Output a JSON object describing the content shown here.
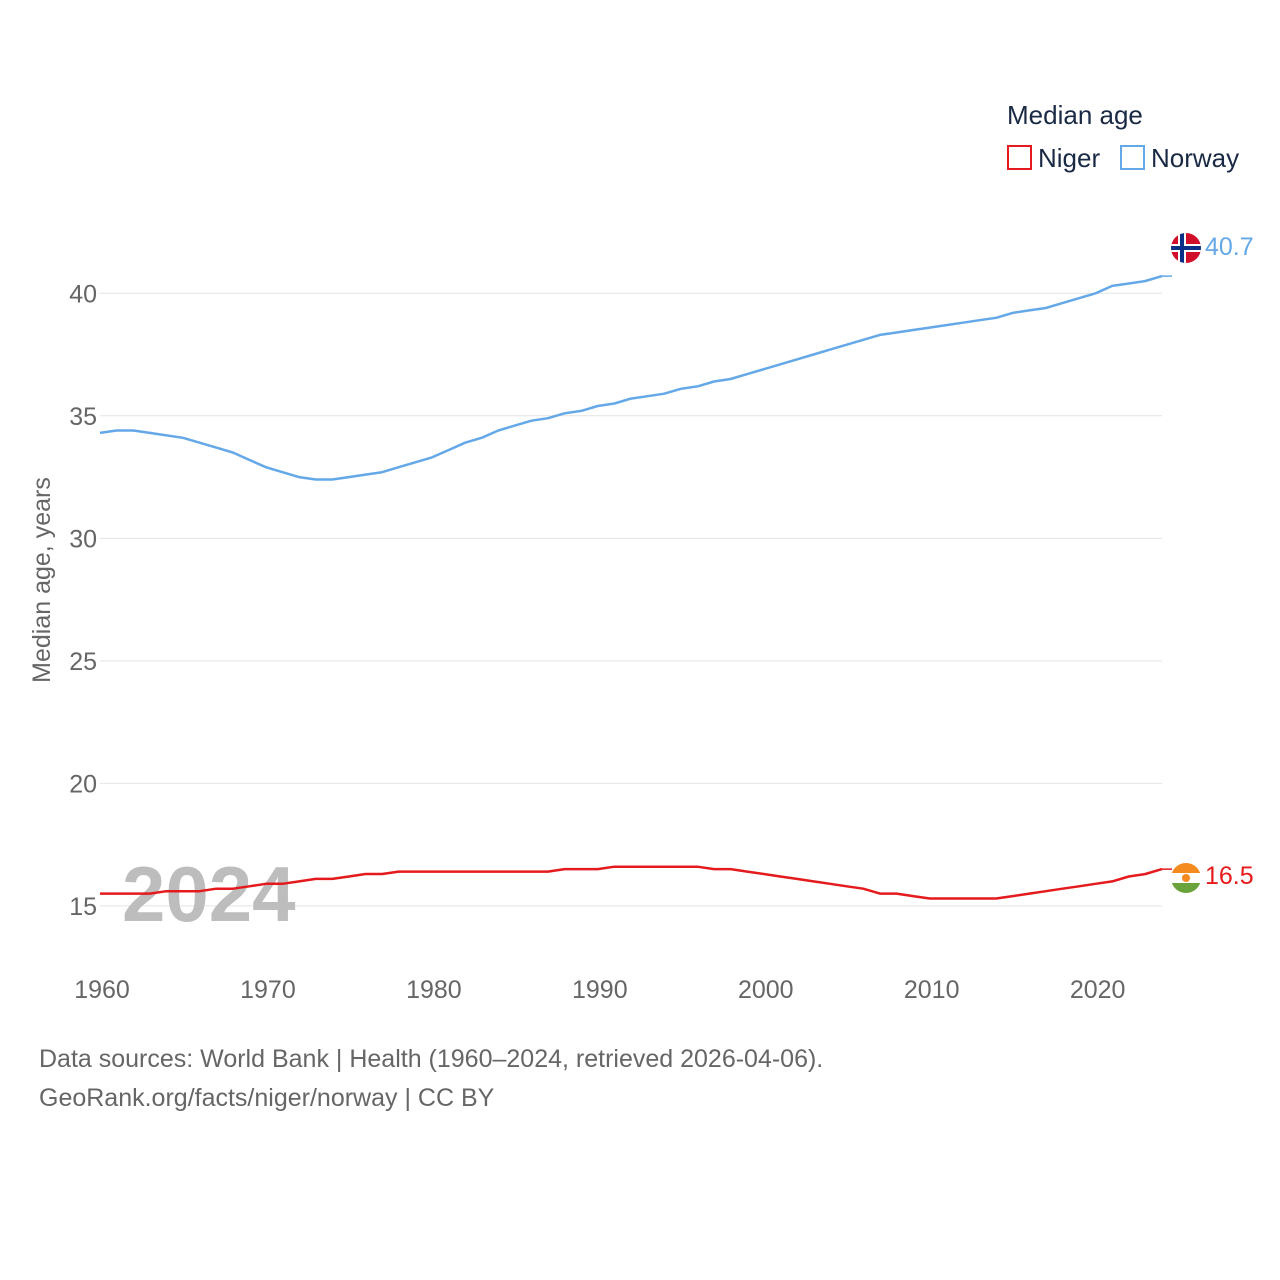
{
  "chart_data": {
    "type": "line",
    "legend_title": "Median age",
    "ylabel": "Median age, years",
    "xlabel": "",
    "year_label": "2024",
    "ylim": [
      13.2,
      42.5
    ],
    "xlim": [
      1960,
      2024
    ],
    "y_ticks": [
      15,
      20,
      25,
      30,
      35,
      40
    ],
    "x_ticks": [
      1960,
      1970,
      1980,
      1990,
      2000,
      2010,
      2020
    ],
    "grid": true,
    "legend_position": "top-right",
    "series": [
      {
        "name": "Niger",
        "color": "#e41a1c",
        "end_label": "16.5",
        "flag_icon": "niger-flag-icon",
        "x": [
          1960,
          1961,
          1962,
          1963,
          1964,
          1965,
          1966,
          1967,
          1968,
          1969,
          1970,
          1971,
          1972,
          1973,
          1974,
          1975,
          1976,
          1977,
          1978,
          1979,
          1980,
          1981,
          1982,
          1983,
          1984,
          1985,
          1986,
          1987,
          1988,
          1989,
          1990,
          1991,
          1992,
          1993,
          1994,
          1995,
          1996,
          1997,
          1998,
          1999,
          2000,
          2001,
          2002,
          2003,
          2004,
          2005,
          2006,
          2007,
          2008,
          2009,
          2010,
          2011,
          2012,
          2013,
          2014,
          2015,
          2016,
          2017,
          2018,
          2019,
          2020,
          2021,
          2022,
          2023,
          2024
        ],
        "values": [
          15.5,
          15.5,
          15.5,
          15.5,
          15.6,
          15.6,
          15.6,
          15.7,
          15.7,
          15.8,
          15.9,
          15.9,
          16.0,
          16.1,
          16.1,
          16.2,
          16.3,
          16.3,
          16.4,
          16.4,
          16.4,
          16.4,
          16.4,
          16.4,
          16.4,
          16.4,
          16.4,
          16.4,
          16.5,
          16.5,
          16.5,
          16.6,
          16.6,
          16.6,
          16.6,
          16.6,
          16.6,
          16.5,
          16.5,
          16.4,
          16.3,
          16.2,
          16.1,
          16.0,
          15.9,
          15.8,
          15.7,
          15.5,
          15.5,
          15.4,
          15.3,
          15.3,
          15.3,
          15.3,
          15.3,
          15.4,
          15.5,
          15.6,
          15.7,
          15.8,
          15.9,
          16.0,
          16.2,
          16.3,
          16.5
        ]
      },
      {
        "name": "Norway",
        "color": "#64a8e8",
        "end_label": "40.7",
        "flag_icon": "norway-flag-icon",
        "x": [
          1960,
          1961,
          1962,
          1963,
          1964,
          1965,
          1966,
          1967,
          1968,
          1969,
          1970,
          1971,
          1972,
          1973,
          1974,
          1975,
          1976,
          1977,
          1978,
          1979,
          1980,
          1981,
          1982,
          1983,
          1984,
          1985,
          1986,
          1987,
          1988,
          1989,
          1990,
          1991,
          1992,
          1993,
          1994,
          1995,
          1996,
          1997,
          1998,
          1999,
          2000,
          2001,
          2002,
          2003,
          2004,
          2005,
          2006,
          2007,
          2008,
          2009,
          2010,
          2011,
          2012,
          2013,
          2014,
          2015,
          2016,
          2017,
          2018,
          2019,
          2020,
          2021,
          2022,
          2023,
          2024
        ],
        "values": [
          34.3,
          34.4,
          34.4,
          34.3,
          34.2,
          34.1,
          33.9,
          33.7,
          33.5,
          33.2,
          32.9,
          32.7,
          32.5,
          32.4,
          32.4,
          32.5,
          32.6,
          32.7,
          32.9,
          33.1,
          33.3,
          33.6,
          33.9,
          34.1,
          34.4,
          34.6,
          34.8,
          34.9,
          35.1,
          35.2,
          35.4,
          35.5,
          35.7,
          35.8,
          35.9,
          36.1,
          36.2,
          36.4,
          36.5,
          36.7,
          36.9,
          37.1,
          37.3,
          37.5,
          37.7,
          37.9,
          38.1,
          38.3,
          38.4,
          38.5,
          38.6,
          38.7,
          38.8,
          38.9,
          39.0,
          39.2,
          39.3,
          39.4,
          39.6,
          39.8,
          40.0,
          40.3,
          40.4,
          40.5,
          40.7
        ]
      }
    ]
  },
  "footer": {
    "sources_line": "Data sources: World Bank | Health (1960–2024, retrieved 2026-04-06).",
    "attribution_line": "GeoRank.org/facts/niger/norway | CC BY"
  }
}
